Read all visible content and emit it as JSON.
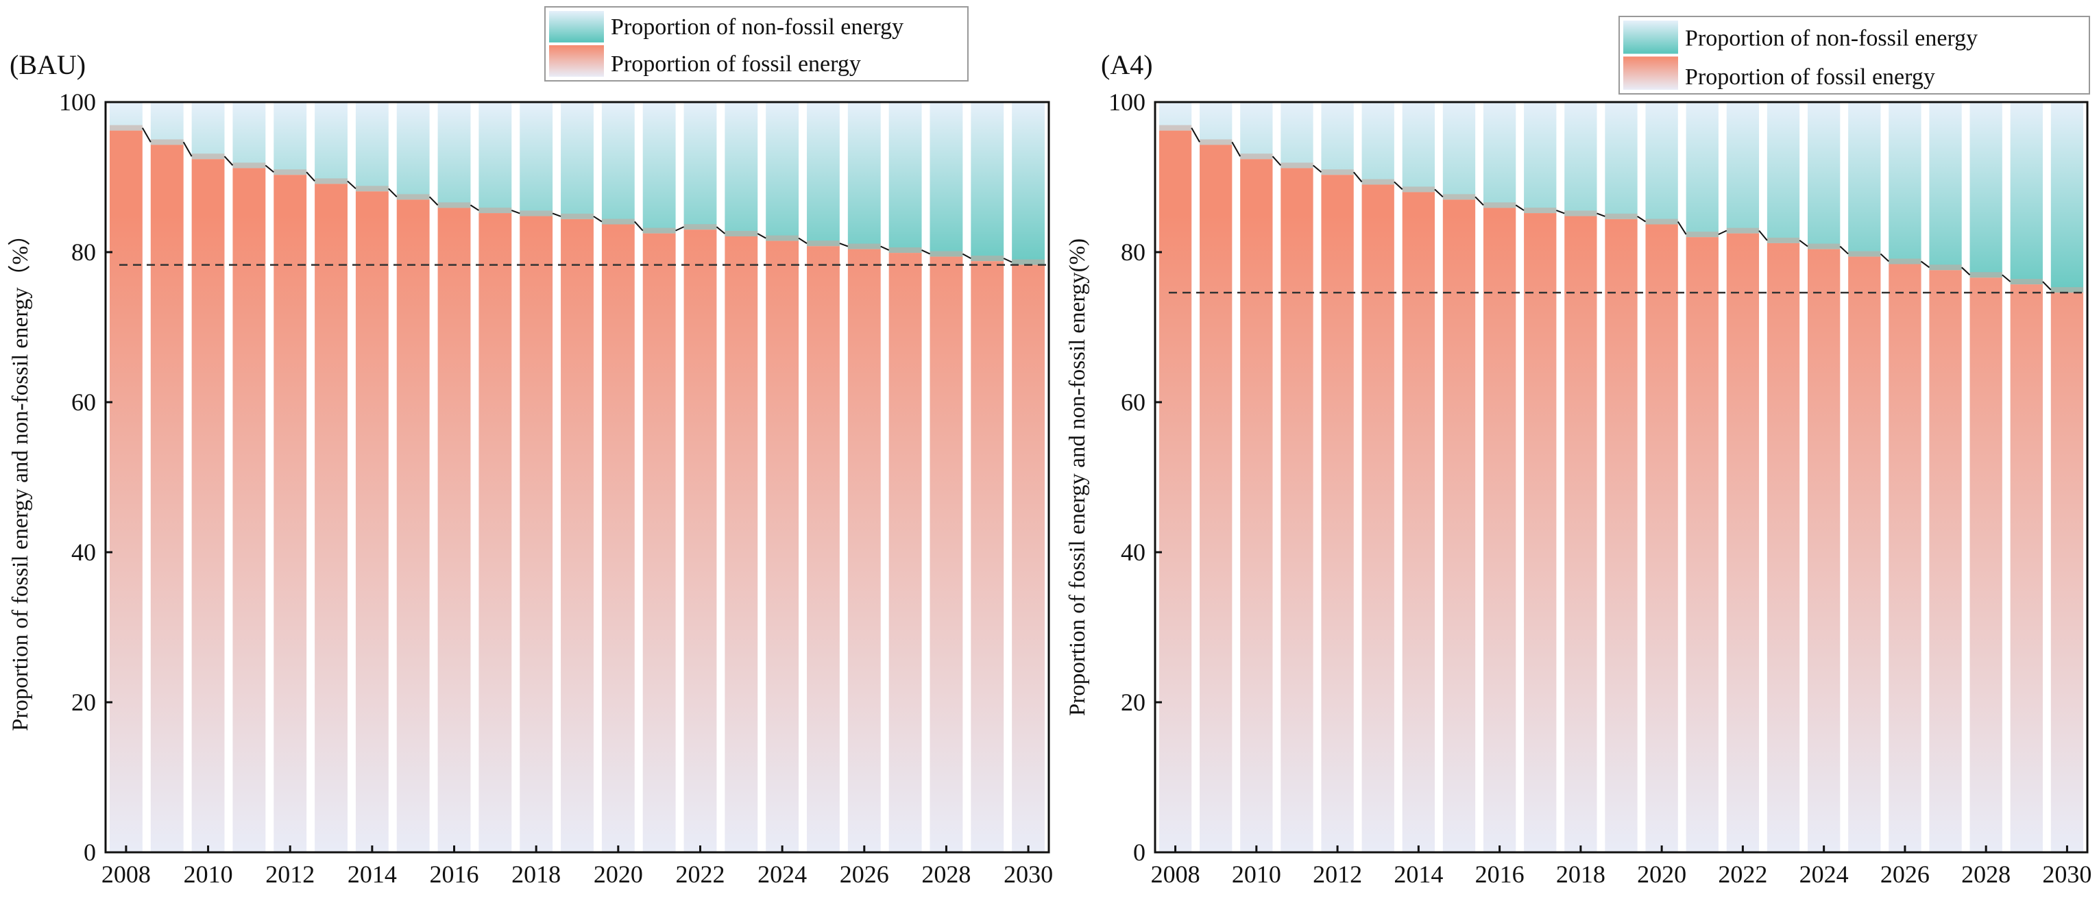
{
  "chart_data": [
    {
      "type": "bar",
      "stacked": true,
      "title": "(BAU)",
      "xlabel": "",
      "ylabel": "Proportion of fossil energy and non-fossil energy（%）",
      "ylim": [
        0,
        100
      ],
      "yticks": [
        "0",
        "20",
        "40",
        "60",
        "80",
        "100"
      ],
      "xticks": [
        "2008",
        "2010",
        "2012",
        "2014",
        "2016",
        "2018",
        "2020",
        "2022",
        "2024",
        "2026",
        "2028",
        "2030"
      ],
      "categories": [
        2008,
        2009,
        2010,
        2011,
        2012,
        2013,
        2014,
        2015,
        2016,
        2017,
        2018,
        2019,
        2020,
        2021,
        2022,
        2023,
        2024,
        2025,
        2026,
        2027,
        2028,
        2029,
        2030
      ],
      "series": [
        {
          "name": "Proportion of fossil energy",
          "values": [
            96.2,
            94.3,
            92.4,
            91.2,
            90.3,
            89.1,
            88.1,
            87.0,
            85.9,
            85.2,
            84.8,
            84.4,
            83.7,
            82.5,
            83.0,
            82.1,
            81.5,
            80.8,
            80.4,
            79.9,
            79.4,
            78.8,
            78.3
          ]
        },
        {
          "name": "Proportion of non-fossil energy",
          "values": [
            3.8,
            5.7,
            7.6,
            8.8,
            9.7,
            10.9,
            11.9,
            13.0,
            14.1,
            14.8,
            15.2,
            15.6,
            16.3,
            17.5,
            17.0,
            17.9,
            18.5,
            19.2,
            19.6,
            20.1,
            20.6,
            21.2,
            21.7
          ]
        }
      ],
      "reference_line": 78.3,
      "legend": [
        "Proportion of non-fossil energy",
        "Proportion of fossil energy"
      ],
      "legend_position": "top-right"
    },
    {
      "type": "bar",
      "stacked": true,
      "title": "(A4)",
      "xlabel": "",
      "ylabel": "Proportion of fossil energy and non-fossil energy(%)",
      "ylim": [
        0,
        100
      ],
      "yticks": [
        "0",
        "20",
        "40",
        "60",
        "80",
        "100"
      ],
      "xticks": [
        "2008",
        "2010",
        "2012",
        "2014",
        "2016",
        "2018",
        "2020",
        "2022",
        "2024",
        "2026",
        "2028",
        "2030"
      ],
      "categories": [
        2008,
        2009,
        2010,
        2011,
        2012,
        2013,
        2014,
        2015,
        2016,
        2017,
        2018,
        2019,
        2020,
        2021,
        2022,
        2023,
        2024,
        2025,
        2026,
        2027,
        2028,
        2029,
        2030
      ],
      "series": [
        {
          "name": "Proportion of fossil energy",
          "values": [
            96.2,
            94.3,
            92.4,
            91.2,
            90.3,
            89.0,
            88.0,
            87.0,
            85.9,
            85.2,
            84.8,
            84.4,
            83.7,
            82.0,
            82.5,
            81.2,
            80.4,
            79.4,
            78.4,
            77.6,
            76.6,
            75.7,
            74.6
          ]
        },
        {
          "name": "Proportion of non-fossil energy",
          "values": [
            3.8,
            5.7,
            7.6,
            8.8,
            9.7,
            11.0,
            12.0,
            13.0,
            14.1,
            14.8,
            15.2,
            15.6,
            16.3,
            18.0,
            17.5,
            18.8,
            19.6,
            20.6,
            21.6,
            22.4,
            23.4,
            24.3,
            25.4
          ]
        }
      ],
      "reference_line": 74.6,
      "legend": [
        "Proportion of non-fossil energy",
        "Proportion of fossil energy"
      ],
      "legend_position": "top-right"
    }
  ],
  "colors": {
    "fossil_top": "#f48e74",
    "fossil_bottom": "#e9ecf7",
    "nonfossil_bottom": "#5ec6bd",
    "nonfossil_top": "#e6f0fa"
  }
}
